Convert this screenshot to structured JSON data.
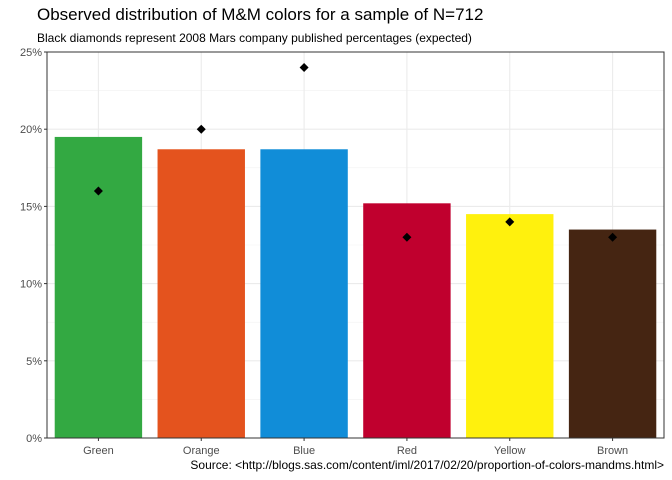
{
  "chart_data": {
    "type": "bar",
    "title": "Observed distribution of M&M colors for a sample of N=712",
    "subtitle": "Black diamonds represent 2008 Mars company published percentages (expected)",
    "caption": "Source: <http://blogs.sas.com/content/iml/2017/02/20/proportion-of-colors-mandms.html>",
    "categories": [
      "Green",
      "Orange",
      "Blue",
      "Red",
      "Yellow",
      "Brown"
    ],
    "values": [
      19.5,
      18.7,
      18.7,
      15.2,
      14.5,
      13.5
    ],
    "expected": [
      16,
      20,
      24,
      13,
      14,
      13
    ],
    "bar_colors": [
      "#33A942",
      "#E4531E",
      "#118DD8",
      "#C0002E",
      "#FFF10D",
      "#452512"
    ],
    "marker_color": "#000000",
    "ylim": [
      0,
      25
    ],
    "y_ticks": [
      0,
      5,
      10,
      15,
      20,
      25
    ],
    "y_tick_labels": [
      "0%",
      "5%",
      "10%",
      "15%",
      "20%",
      "25%"
    ],
    "grid": true,
    "xlabel": "",
    "ylabel": ""
  }
}
